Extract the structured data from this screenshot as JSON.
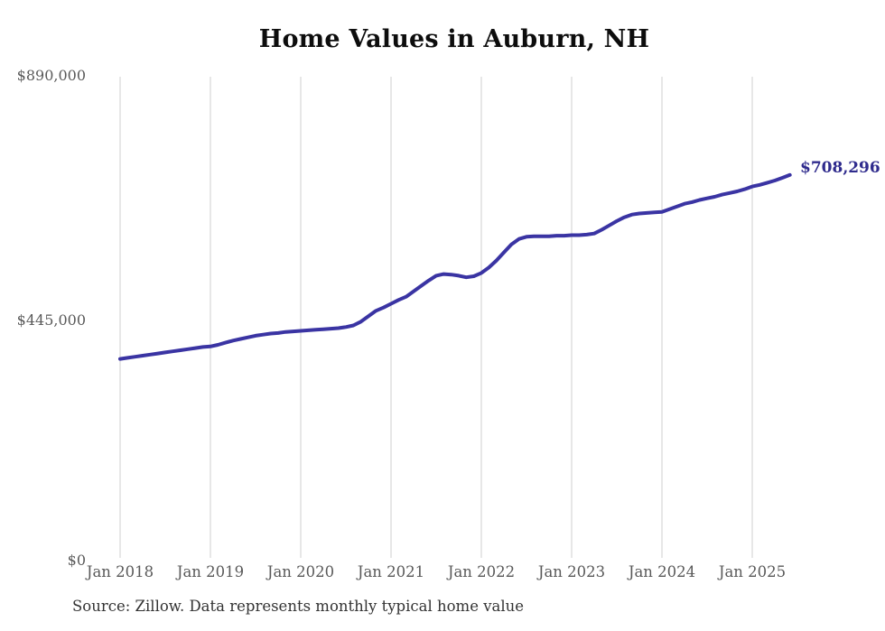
{
  "page": {
    "title": "Home Values in Auburn, NH",
    "source_note": "Source: Zillow. Data represents monthly typical home value"
  },
  "axes": {
    "y_labels": [
      "$890,000",
      "$445,000",
      "$0"
    ],
    "x_labels": [
      "Jan 2018",
      "Jan 2019",
      "Jan 2020",
      "Jan 2021",
      "Jan 2022",
      "Jan 2023",
      "Jan 2024",
      "Jan 2025"
    ]
  },
  "colors": {
    "line": "#3a34a3",
    "end_label": "#2f2b8d",
    "grid": "#cfcfcf",
    "axis_text": "#595959",
    "title_text": "#0d0d0d",
    "source_text": "#333333",
    "background": "#ffffff"
  },
  "chart_data": {
    "type": "line",
    "title": "Home Values in Auburn, NH",
    "xlabel": "",
    "ylabel": "",
    "x_interval": "monthly",
    "x_start": "Jan 2018",
    "x_end": "Jun 2025",
    "xticks": [
      "Jan 2018",
      "Jan 2019",
      "Jan 2020",
      "Jan 2021",
      "Jan 2022",
      "Jan 2023",
      "Jan 2024",
      "Jan 2025"
    ],
    "yticks": [
      0,
      445000,
      890000
    ],
    "ylim": [
      0,
      890000
    ],
    "grid": "vertical-only",
    "legend": false,
    "final_value": 708296,
    "final_value_label": "$708,296",
    "series": [
      {
        "name": "Typical home value",
        "values": [
          368000,
          370000,
          372000,
          374000,
          376000,
          378000,
          380000,
          382000,
          384000,
          386000,
          388000,
          390000,
          391000,
          394000,
          398000,
          402000,
          405000,
          408000,
          411000,
          413000,
          415000,
          416000,
          418000,
          419000,
          420000,
          421000,
          422000,
          423000,
          424000,
          425000,
          427000,
          430000,
          437000,
          447000,
          457000,
          463000,
          470000,
          477000,
          483000,
          493000,
          503000,
          513000,
          522000,
          525000,
          524000,
          522000,
          519000,
          521000,
          527000,
          537000,
          550000,
          565000,
          580000,
          590000,
          594000,
          595000,
          595000,
          595000,
          596000,
          596000,
          597000,
          597000,
          598000,
          600000,
          607000,
          615000,
          623000,
          630000,
          635000,
          637000,
          638000,
          639000,
          640000,
          645000,
          650000,
          655000,
          658000,
          662000,
          665000,
          668000,
          672000,
          675000,
          678000,
          682000,
          687000,
          690000,
          694000,
          698000,
          703000,
          708296
        ]
      }
    ],
    "source": "Source: Zillow. Data represents monthly typical home value"
  }
}
